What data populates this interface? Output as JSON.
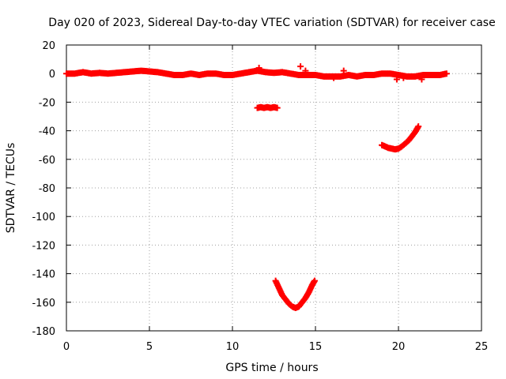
{
  "chart_data": {
    "type": "scatter",
    "title": "Day 020 of 2023, Sidereal Day-to-day VTEC variation (SDTVAR) for receiver case",
    "xlabel": "GPS time / hours",
    "ylabel": "SDTVAR / TECUs",
    "xlim": [
      0,
      25
    ],
    "ylim": [
      -180,
      20
    ],
    "xticks": [
      0,
      5,
      10,
      15,
      20,
      25
    ],
    "yticks": [
      20,
      0,
      -20,
      -40,
      -60,
      -80,
      -100,
      -120,
      -140,
      -160,
      -180
    ],
    "grid": true,
    "marker_color": "#ff0000",
    "series": [
      {
        "name": "near-zero",
        "x": [
          0.0,
          0.5,
          1.0,
          1.5,
          2.0,
          2.5,
          3.0,
          3.5,
          4.0,
          4.5,
          5.0,
          5.5,
          6.0,
          6.5,
          7.0,
          7.5,
          8.0,
          8.5,
          9.0,
          9.5,
          10.0,
          10.5,
          11.0,
          11.5,
          12.0,
          12.5,
          13.0,
          13.5,
          14.0,
          14.5,
          15.0,
          15.5,
          16.0,
          16.5,
          17.0,
          17.5,
          18.0,
          18.5,
          19.0,
          19.5,
          20.0,
          20.5,
          21.0,
          21.5,
          22.0,
          22.5,
          22.9
        ],
        "y": [
          0,
          0,
          1,
          0,
          0.5,
          0,
          0.5,
          1,
          1.5,
          2,
          1.5,
          1,
          0,
          -1,
          -1,
          0,
          -1,
          0,
          0,
          -1,
          -1,
          0,
          1,
          2,
          1,
          0.5,
          1,
          0,
          -1,
          -1,
          -1,
          -2,
          -2,
          -2,
          -1,
          -2,
          -1,
          -1,
          0,
          0,
          -1,
          -2,
          -2,
          -1,
          -1,
          -1,
          0
        ]
      },
      {
        "name": "near-zero-scatter",
        "x": [
          11.6,
          14.1,
          14.4,
          16.1,
          16.7,
          19.9,
          20.3,
          21.4
        ],
        "y": [
          4,
          5,
          2,
          -3,
          2,
          -4,
          -3,
          -4
        ]
      },
      {
        "name": "segment-minus-24",
        "x": [
          11.5,
          11.7,
          11.9,
          12.1,
          12.3,
          12.5,
          12.7
        ],
        "y": [
          -24,
          -23.5,
          -24,
          -23.5,
          -24,
          -23.5,
          -24
        ]
      },
      {
        "name": "segment-minus-50",
        "x": [
          19.0,
          19.2,
          19.4,
          19.6,
          19.8,
          20.0,
          20.2,
          20.4,
          20.6,
          20.8,
          21.0,
          21.2
        ],
        "y": [
          -50,
          -51,
          -52,
          -52.5,
          -53,
          -52.5,
          -51,
          -49,
          -47,
          -44,
          -41,
          -37
        ]
      },
      {
        "name": "segment-minus-160",
        "x": [
          12.6,
          12.8,
          13.0,
          13.2,
          13.4,
          13.6,
          13.8,
          14.0,
          14.2,
          14.4,
          14.6,
          14.8,
          14.95
        ],
        "y": [
          -145,
          -150,
          -155,
          -158,
          -161,
          -163,
          -164,
          -163,
          -160,
          -157,
          -153,
          -148,
          -145
        ]
      }
    ]
  }
}
